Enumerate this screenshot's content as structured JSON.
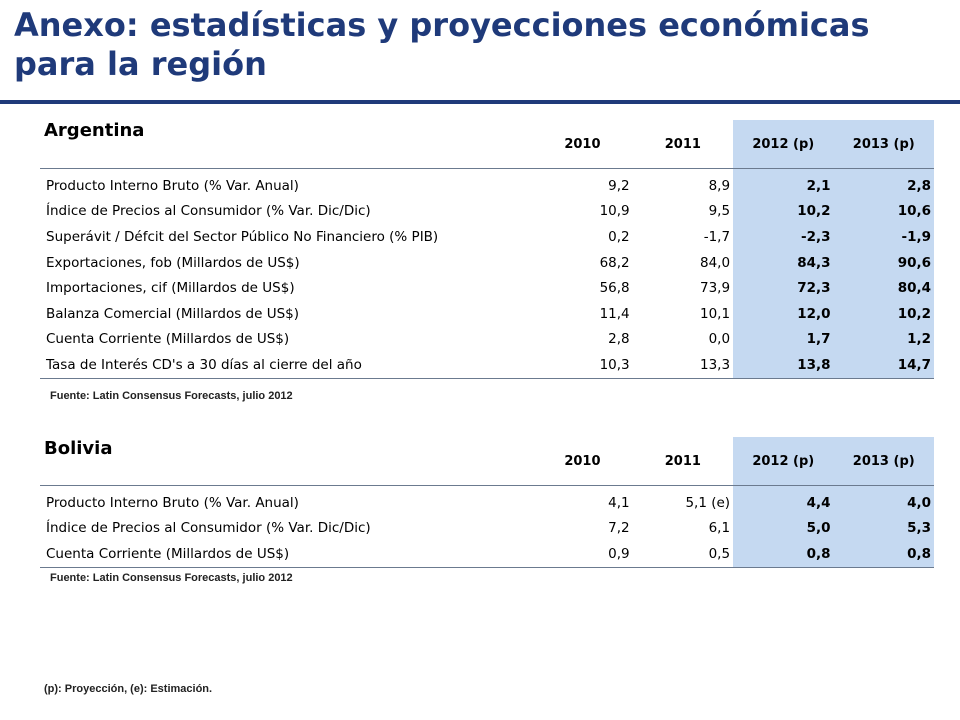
{
  "title": "Anexo: estadísticas y proyecciones económicas para la región",
  "years": [
    "2010",
    "2011",
    "2012 (p)",
    "2013 (p)"
  ],
  "argentina": {
    "name": "Argentina",
    "rows": [
      {
        "label": "Producto Interno Bruto (% Var. Anual)",
        "v": [
          "9,2",
          "8,9",
          "2,1",
          "2,8"
        ]
      },
      {
        "label": "Índice de Precios al Consumidor (% Var. Dic/Dic)",
        "v": [
          "10,9",
          "9,5",
          "10,2",
          "10,6"
        ]
      },
      {
        "label": "Superávit / Défcit del Sector Público No Financiero (% PIB)",
        "v": [
          "0,2",
          "-1,7",
          "-2,3",
          "-1,9"
        ]
      },
      {
        "label": "Exportaciones, fob (Millardos de US$)",
        "v": [
          "68,2",
          "84,0",
          "84,3",
          "90,6"
        ]
      },
      {
        "label": "Importaciones, cif (Millardos de US$)",
        "v": [
          "56,8",
          "73,9",
          "72,3",
          "80,4"
        ]
      },
      {
        "label": "Balanza Comercial (Millardos de US$)",
        "v": [
          "11,4",
          "10,1",
          "12,0",
          "10,2"
        ]
      },
      {
        "label": "Cuenta Corriente (Millardos de US$)",
        "v": [
          "2,8",
          "0,0",
          "1,7",
          "1,2"
        ]
      },
      {
        "label": "Tasa de Interés CD's a 30 días al cierre del año",
        "v": [
          "10,3",
          "13,3",
          "13,8",
          "14,7"
        ]
      }
    ],
    "source": "Fuente: Latin Consensus Forecasts, julio 2012"
  },
  "bolivia": {
    "name": "Bolivia",
    "rows": [
      {
        "label": "Producto Interno Bruto (% Var. Anual)",
        "v": [
          "4,1",
          "5,1 (e)",
          "4,4",
          "4,0"
        ]
      },
      {
        "label": "Índice de Precios al Consumidor (% Var. Dic/Dic)",
        "v": [
          "7,2",
          "6,1",
          "5,0",
          "5,3"
        ]
      },
      {
        "label": "Cuenta Corriente (Millardos de US$)",
        "v": [
          "0,9",
          "0,5",
          "0,8",
          "0,8"
        ]
      }
    ],
    "source": "Fuente: Latin Consensus Forecasts, julio 2012"
  },
  "footnote": "(p): Proyección, (e): Estimación.",
  "colors": {
    "title": "#1f3a7a",
    "projection_fill": "#c5d9f1"
  }
}
